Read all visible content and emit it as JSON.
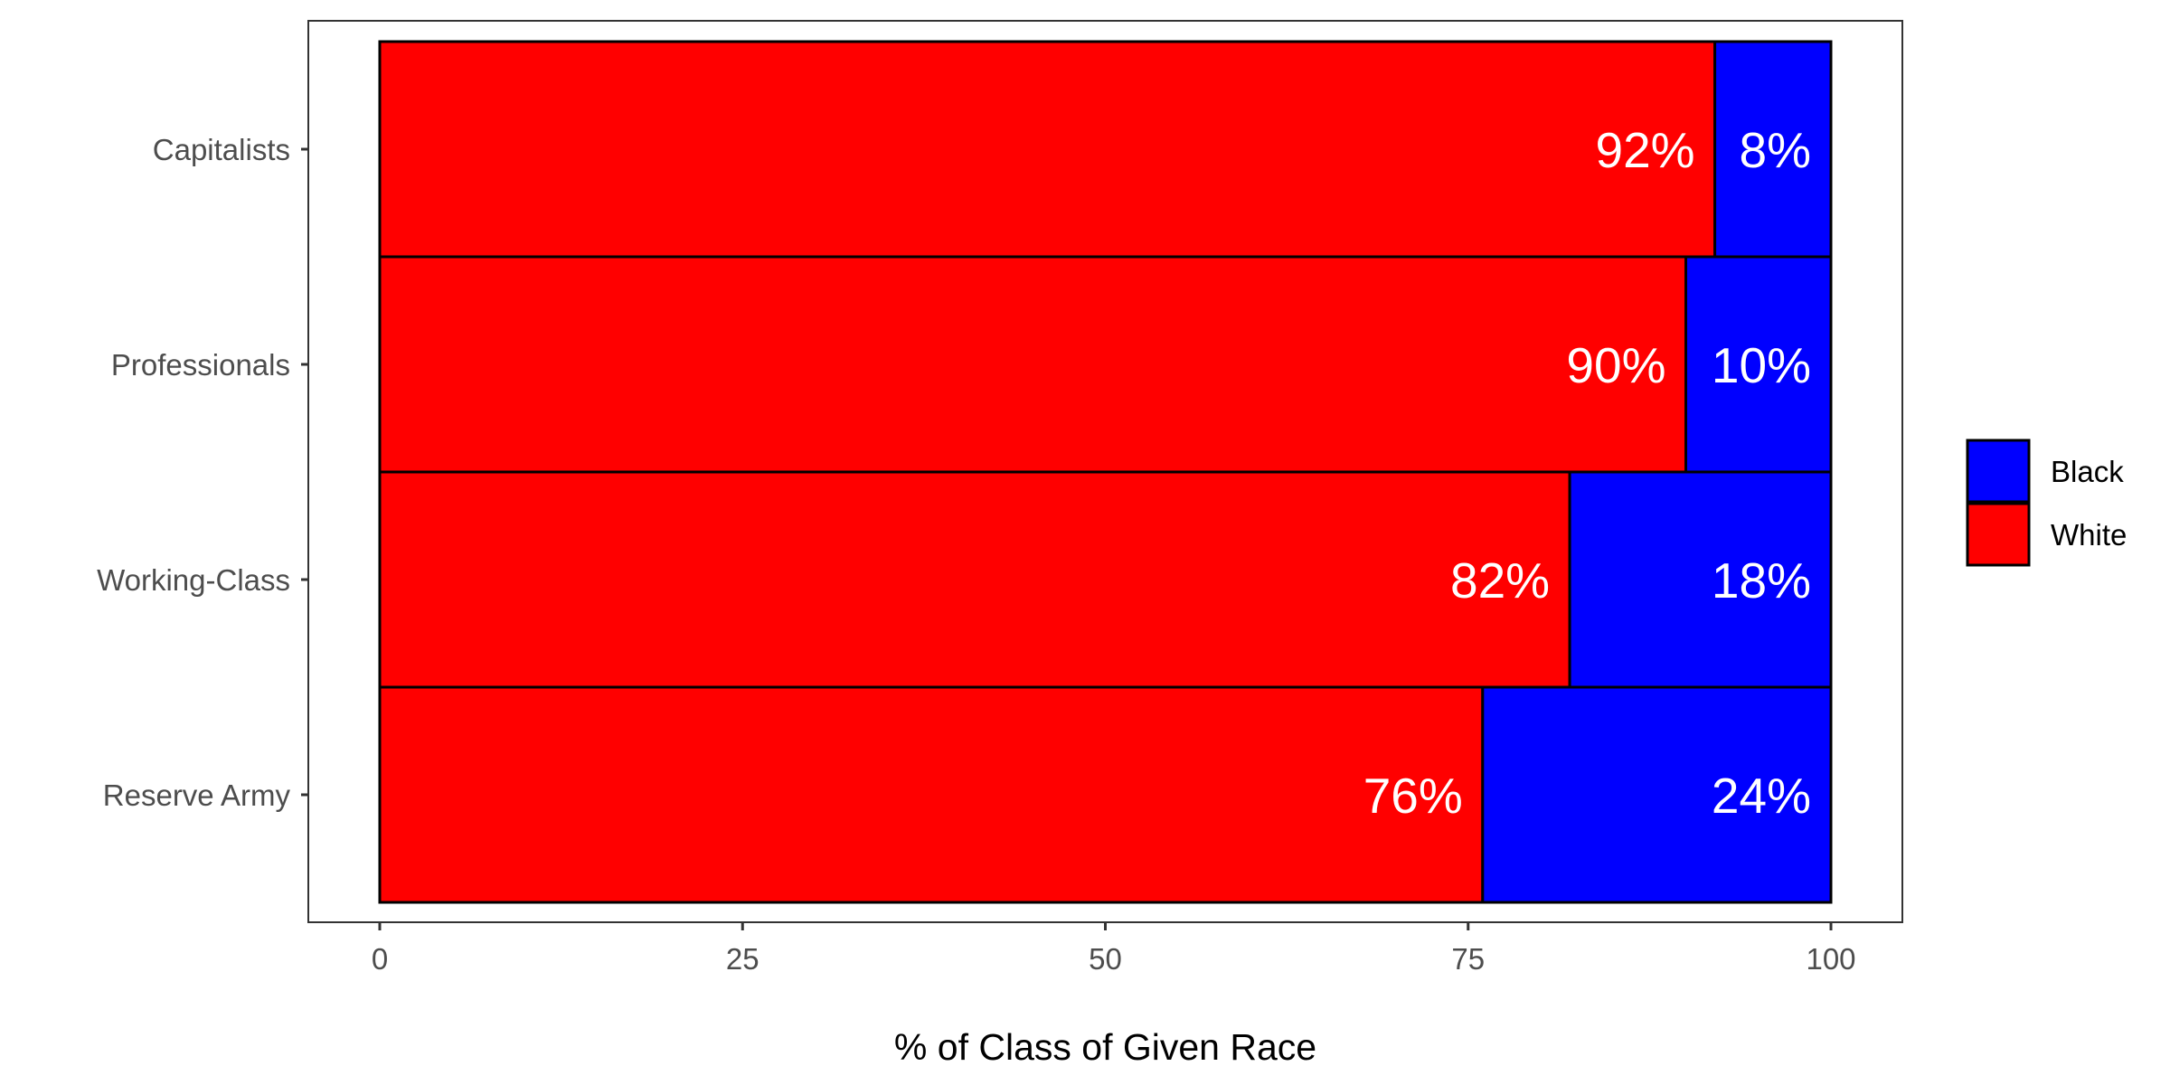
{
  "chart_data": {
    "type": "bar",
    "orientation": "horizontal",
    "stacked": true,
    "categories": [
      "Capitalists",
      "Professionals",
      "Working-Class",
      "Reserve Army"
    ],
    "series": [
      {
        "name": "White",
        "values": [
          92,
          90,
          82,
          76
        ],
        "labels": [
          "92%",
          "90%",
          "82%",
          "76%"
        ],
        "color": "#ff0000"
      },
      {
        "name": "Black",
        "values": [
          8,
          10,
          18,
          24
        ],
        "labels": [
          "8%",
          "10%",
          "18%",
          "24%"
        ],
        "color": "#0000ff"
      }
    ],
    "title": "",
    "xlabel": "% of Class of Given Race",
    "ylabel": "",
    "xlim": [
      0,
      100
    ],
    "xticks": [
      0,
      25,
      50,
      75,
      100
    ],
    "xtick_labels": [
      "0",
      "25",
      "50",
      "75",
      "100"
    ],
    "grid": false,
    "legend": {
      "placement": "right",
      "entries": [
        {
          "label": "Black",
          "color": "#0000ff"
        },
        {
          "label": "White",
          "color": "#ff0000"
        }
      ]
    }
  }
}
